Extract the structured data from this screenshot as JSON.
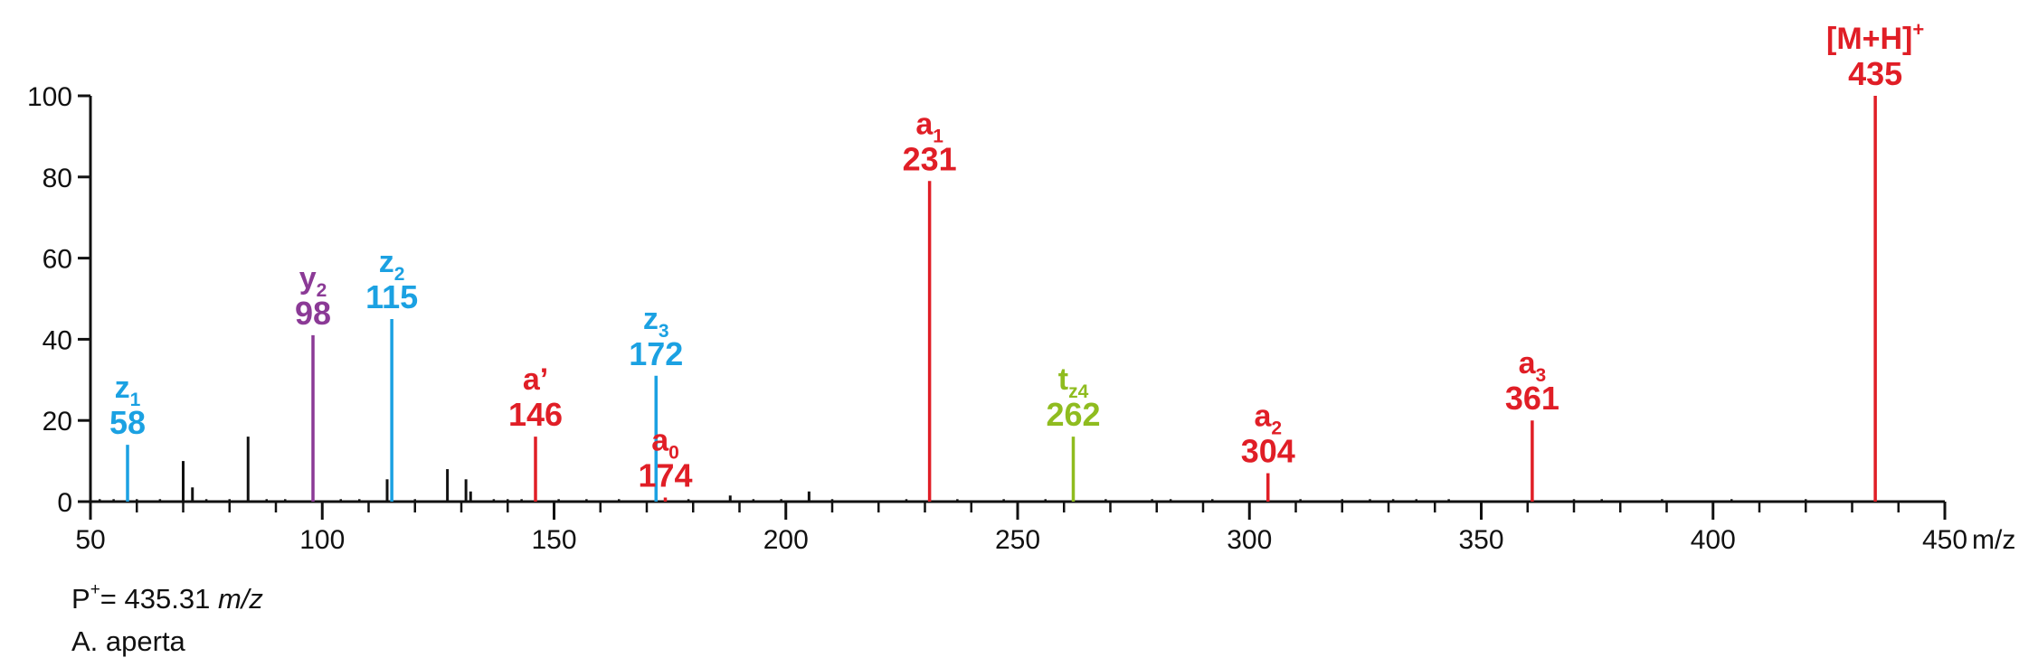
{
  "chart_data": {
    "type": "bar",
    "x_unit_label": "m/z",
    "xlim": [
      50,
      450
    ],
    "ylim": [
      0,
      100
    ],
    "x_ticks": [
      50,
      100,
      150,
      200,
      250,
      300,
      350,
      400,
      450
    ],
    "y_ticks": [
      0,
      20,
      40,
      60,
      80,
      100
    ],
    "colors": {
      "a": "#e01e26",
      "z": "#1ba1e2",
      "y": "#8b3a96",
      "t": "#8fbc1f",
      "other": "#111111"
    },
    "annotated_peaks": [
      {
        "mz": 58,
        "intensity": 14,
        "ion": "z",
        "sub": "1",
        "sup": "",
        "label": "58",
        "color": "#1ba1e2"
      },
      {
        "mz": 98,
        "intensity": 41,
        "ion": "y",
        "sub": "2",
        "sup": "",
        "label": "98",
        "color": "#8b3a96"
      },
      {
        "mz": 115,
        "intensity": 45,
        "ion": "z",
        "sub": "2",
        "sup": "",
        "label": "115",
        "color": "#1ba1e2"
      },
      {
        "mz": 146,
        "intensity": 16,
        "ion": "a’",
        "sub": "",
        "sup": "",
        "label": "146",
        "color": "#e01e26"
      },
      {
        "mz": 172,
        "intensity": 31,
        "ion": "z",
        "sub": "3",
        "sup": "",
        "label": "172",
        "color": "#1ba1e2"
      },
      {
        "mz": 174,
        "intensity": 1,
        "ion": "a",
        "sub": "0",
        "sup": "",
        "label": "174",
        "color": "#e01e26"
      },
      {
        "mz": 231,
        "intensity": 79,
        "ion": "a",
        "sub": "1",
        "sup": "",
        "label": "231",
        "color": "#e01e26"
      },
      {
        "mz": 262,
        "intensity": 16,
        "ion": "t",
        "sub": "z4",
        "sup": "",
        "label": "262",
        "color": "#8fbc1f"
      },
      {
        "mz": 304,
        "intensity": 7,
        "ion": "a",
        "sub": "2",
        "sup": "",
        "label": "304",
        "color": "#e01e26"
      },
      {
        "mz": 361,
        "intensity": 20,
        "ion": "a",
        "sub": "3",
        "sup": "",
        "label": "361",
        "color": "#e01e26"
      },
      {
        "mz": 435,
        "intensity": 100,
        "ion": "[M+H]",
        "sub": "",
        "sup": "+",
        "label": "435",
        "color": "#e01e26"
      }
    ],
    "minor_peaks": [
      {
        "mz": 70,
        "intensity": 10
      },
      {
        "mz": 72,
        "intensity": 3.5
      },
      {
        "mz": 84,
        "intensity": 16
      },
      {
        "mz": 114,
        "intensity": 5.5
      },
      {
        "mz": 127,
        "intensity": 8
      },
      {
        "mz": 131,
        "intensity": 5.5
      },
      {
        "mz": 132,
        "intensity": 2.5
      },
      {
        "mz": 188,
        "intensity": 1.5
      },
      {
        "mz": 205,
        "intensity": 2.5
      }
    ],
    "noise_peaks_mz": [
      52,
      55,
      60,
      65,
      75,
      80,
      88,
      92,
      104,
      108,
      120,
      137,
      140,
      143,
      151,
      157,
      164,
      179,
      193,
      199,
      210,
      226,
      237,
      247,
      256,
      269,
      279,
      283,
      292,
      311,
      320,
      326,
      331,
      336,
      343,
      370,
      376,
      389,
      404,
      420
    ]
  },
  "footnote": {
    "precursor_prefix": "P",
    "precursor_sup": "+",
    "precursor_value": "= 435.31",
    "precursor_unit": "m/z",
    "species": "A. aperta"
  }
}
